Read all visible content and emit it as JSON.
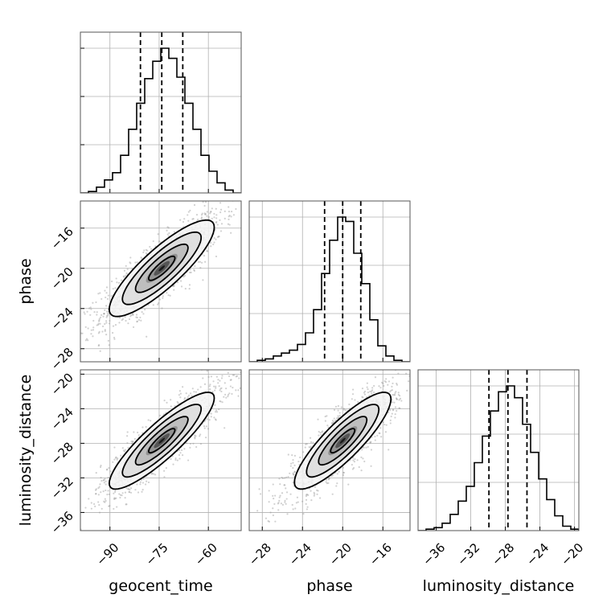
{
  "chart_data": {
    "type": "corner",
    "parameters": [
      "geocent_time",
      "phase",
      "luminosity_distance"
    ],
    "axis_labels": {
      "geocent_time": "geocent_time",
      "phase": "phase",
      "luminosity_distance": "luminosity_distance"
    },
    "ranges": {
      "geocent_time": [
        -99,
        -50
      ],
      "phase": [
        -29.3,
        -13.3
      ],
      "luminosity_distance": [
        -38.1,
        -19.5
      ]
    },
    "ticks": {
      "geocent_time": [
        -90,
        -75,
        -60
      ],
      "phase": [
        -28,
        -24,
        -20,
        -16
      ],
      "luminosity_distance": [
        -36,
        -32,
        -28,
        -24,
        -20
      ]
    },
    "tick_labels": {
      "geocent_time": [
        "−90",
        "−75",
        "−60"
      ],
      "phase": [
        "−28",
        "−24",
        "−20",
        "−16"
      ],
      "luminosity_distance": [
        "−36",
        "−32",
        "−28",
        "−24",
        "−20"
      ]
    },
    "quantiles": {
      "geocent_time": [
        -80.7,
        -74.2,
        -67.8
      ],
      "phase": [
        -21.8,
        -20.0,
        -18.2
      ],
      "luminosity_distance": [
        -29.9,
        -27.7,
        -25.5
      ]
    },
    "histograms": {
      "geocent_time": {
        "edges": [
          -99,
          -96.55,
          -94.1,
          -91.65,
          -89.2,
          -86.75,
          -84.3,
          -81.85,
          -79.4,
          -76.95,
          -74.5,
          -72.05,
          -69.6,
          -67.15,
          -64.7,
          -62.25,
          -59.8,
          -57.35,
          -54.9,
          -52.45,
          -50
        ],
        "counts": [
          0,
          1,
          4,
          9,
          14,
          26,
          44,
          62,
          79,
          91,
          100,
          93,
          80,
          62,
          44,
          26,
          15,
          7,
          2,
          0
        ]
      },
      "phase": {
        "edges": [
          -29.3,
          -28.5,
          -27.7,
          -26.9,
          -26.1,
          -25.3,
          -24.5,
          -23.7,
          -22.9,
          -22.1,
          -21.3,
          -20.5,
          -19.7,
          -18.9,
          -18.1,
          -17.3,
          -16.5,
          -15.7,
          -14.9,
          -14.1,
          -13.3
        ],
        "counts": [
          0,
          1,
          2,
          4,
          6,
          8,
          12,
          20,
          36,
          61,
          84,
          100,
          97,
          75,
          54,
          29,
          11,
          4,
          1,
          0
        ]
      },
      "luminosity_distance": {
        "edges": [
          -38.1,
          -37.17,
          -36.24,
          -35.31,
          -34.38,
          -33.45,
          -32.52,
          -31.59,
          -30.66,
          -29.73,
          -28.8,
          -27.87,
          -26.94,
          -26.01,
          -25.08,
          -24.15,
          -23.22,
          -22.29,
          -21.36,
          -20.43,
          -19.5
        ],
        "counts": [
          0,
          1,
          2,
          5,
          11,
          20,
          30,
          46,
          64,
          81,
          94,
          98,
          90,
          72,
          53,
          35,
          21,
          10,
          3,
          1
        ]
      }
    },
    "joint": [
      {
        "x": "geocent_time",
        "y": "phase",
        "mean": [
          -74.2,
          -20.0
        ],
        "sd": [
          8.0,
          2.4
        ],
        "rho": 0.85,
        "contour_sigmas": [
          0.5,
          1.0,
          1.5,
          2.0
        ]
      },
      {
        "x": "geocent_time",
        "y": "luminosity_distance",
        "mean": [
          -74.2,
          -27.7
        ],
        "sd": [
          8.0,
          2.8
        ],
        "rho": 0.88,
        "contour_sigmas": [
          0.5,
          1.0,
          1.5,
          2.0
        ]
      },
      {
        "x": "phase",
        "y": "luminosity_distance",
        "mean": [
          -20.0,
          -27.7
        ],
        "sd": [
          2.4,
          2.8
        ],
        "rho": 0.86,
        "contour_sigmas": [
          0.5,
          1.0,
          1.5,
          2.0
        ]
      }
    ],
    "grid": true,
    "colors": {
      "line": "#000000",
      "points": "#9a9a9a",
      "grid": "#b0b0b0"
    }
  }
}
